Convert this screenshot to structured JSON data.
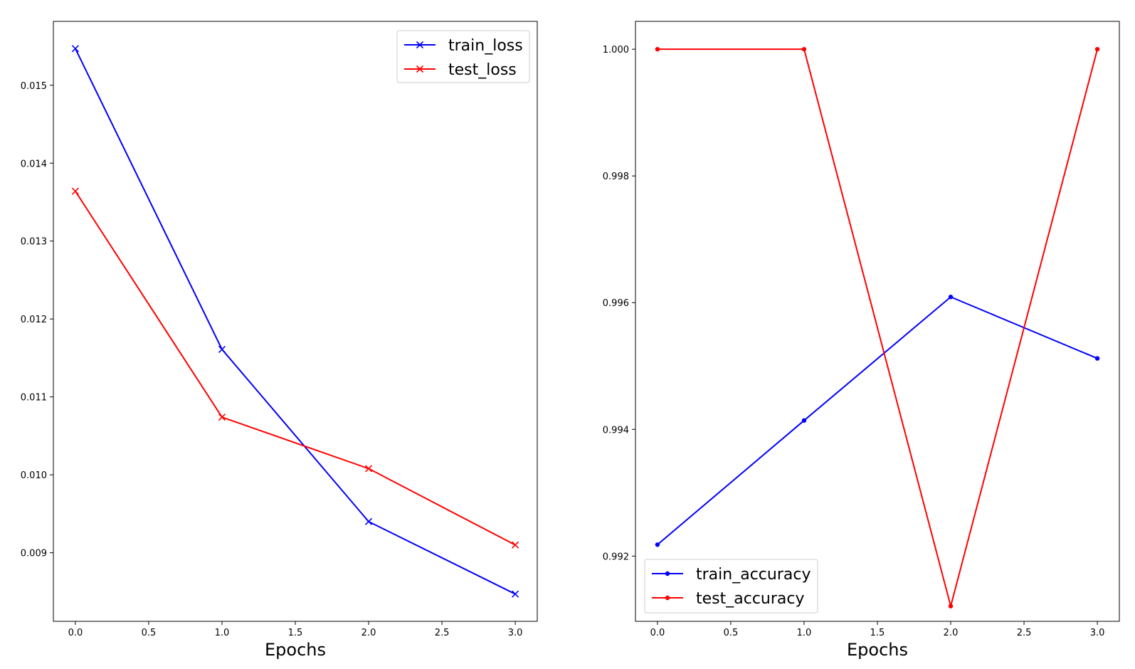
{
  "chart_data": [
    {
      "type": "line",
      "title": "",
      "xlabel": "Epochs",
      "ylabel": "",
      "x": [
        0,
        1,
        2,
        3
      ],
      "xlim": [
        -0.15,
        3.15
      ],
      "ylim": [
        0.00812,
        0.01582
      ],
      "xticks": [
        0.0,
        0.5,
        1.0,
        1.5,
        2.0,
        2.5,
        3.0
      ],
      "xtick_labels": [
        "0.0",
        "0.5",
        "1.0",
        "1.5",
        "2.0",
        "2.5",
        "3.0"
      ],
      "yticks": [
        0.009,
        0.01,
        0.011,
        0.012,
        0.013,
        0.014,
        0.015
      ],
      "ytick_labels": [
        "0.009",
        "0.010",
        "0.011",
        "0.012",
        "0.013",
        "0.014",
        "0.015"
      ],
      "grid": false,
      "legend_position": "top-right",
      "marker": "x",
      "series": [
        {
          "name": "train_loss",
          "color": "#0000ff",
          "values": [
            0.01547,
            0.01161,
            0.0094,
            0.00847
          ]
        },
        {
          "name": "test_loss",
          "color": "#ff0000",
          "values": [
            0.01364,
            0.01074,
            0.01008,
            0.0091
          ]
        }
      ]
    },
    {
      "type": "line",
      "title": "",
      "xlabel": "Epochs",
      "ylabel": "",
      "x": [
        0,
        1,
        2,
        3
      ],
      "xlim": [
        -0.15,
        3.15
      ],
      "ylim": [
        0.99097,
        1.00044
      ],
      "xticks": [
        0.0,
        0.5,
        1.0,
        1.5,
        2.0,
        2.5,
        3.0
      ],
      "xtick_labels": [
        "0.0",
        "0.5",
        "1.0",
        "1.5",
        "2.0",
        "2.5",
        "3.0"
      ],
      "yticks": [
        0.992,
        0.994,
        0.996,
        0.998,
        1.0
      ],
      "ytick_labels": [
        "0.992",
        "0.994",
        "0.996",
        "0.998",
        "1.000"
      ],
      "grid": false,
      "legend_position": "bottom-left",
      "marker": "dot",
      "series": [
        {
          "name": "train_accuracy",
          "color": "#0000ff",
          "values": [
            0.99218,
            0.99414,
            0.99609,
            0.99512
          ]
        },
        {
          "name": "test_accuracy",
          "color": "#ff0000",
          "values": [
            1.0,
            1.0,
            0.99121,
            1.0
          ]
        }
      ]
    }
  ]
}
